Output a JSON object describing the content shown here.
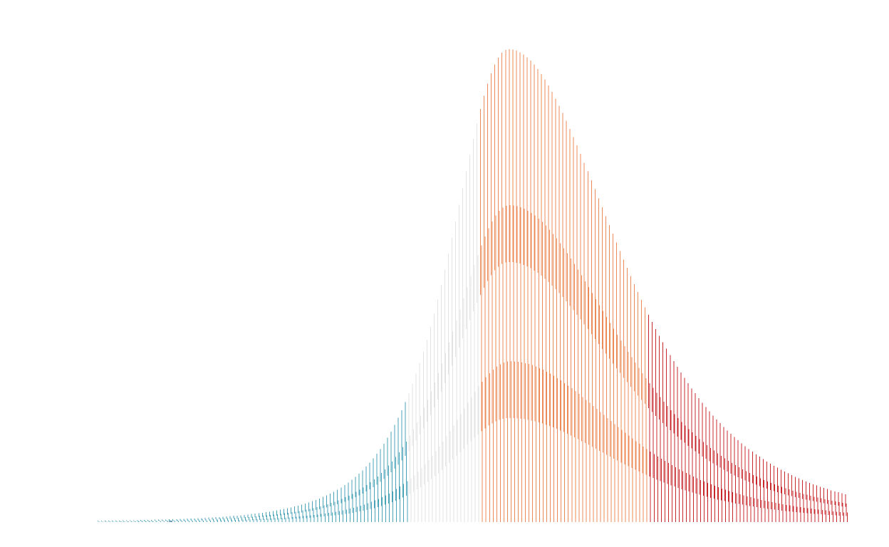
{
  "chart_data": {
    "type": "bar",
    "title": "",
    "xlabel": "",
    "ylabel": "",
    "grid": false,
    "legend": "none",
    "xlim": [
      0,
      1
    ],
    "ylim": [
      0,
      1
    ],
    "bins": {
      "count": 210,
      "x_start": 0.11,
      "x_end": 0.955,
      "skew_split": 0.382,
      "peak_x": 0.572,
      "sigma_left": 0.072,
      "sigma_right": 0.135,
      "peak_value": 0.95
    },
    "segments": [
      {
        "name": "",
        "x_start": 0.11,
        "x_end": 0.457,
        "color": "#4ba3b8"
      },
      {
        "name": "",
        "x_start": 0.457,
        "x_end": 0.539,
        "color": "#e3e3e3"
      },
      {
        "name": "",
        "x_start": 0.539,
        "x_end": 0.727,
        "color": "#ec8b5a"
      },
      {
        "name": "",
        "x_start": 0.727,
        "x_end": 0.955,
        "color": "#c8282c"
      }
    ],
    "stripe_base_color": "#2f6f95"
  }
}
